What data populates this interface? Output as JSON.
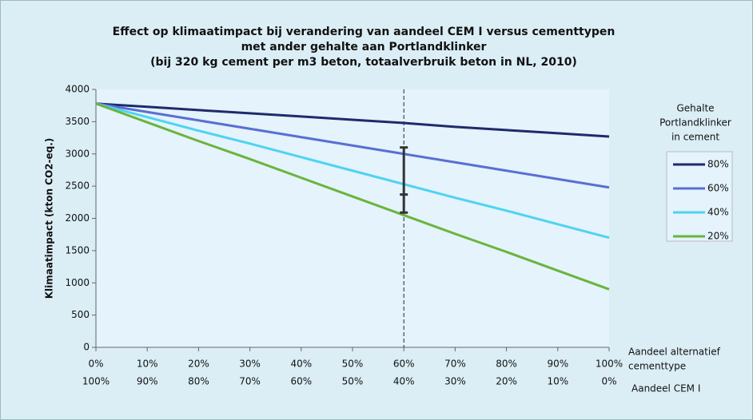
{
  "chart_data": {
    "type": "line",
    "title": [
      "Effect op klimaatimpact bij verandering van aandeel CEM I versus cementtypen",
      "met ander gehalte aan Portlandklinker",
      "(bij 320 kg cement per m3 beton, totaalverbruik beton in NL, 2010)"
    ],
    "y_label": "Klimaatimpact (kton CO2-eq.)",
    "x_label": [
      "Aandeel alternatief",
      "cementtype"
    ],
    "x2_label": "Aandeel CEM I",
    "categories": [
      "0%",
      "10%",
      "20%",
      "30%",
      "40%",
      "50%",
      "60%",
      "70%",
      "80%",
      "90%",
      "100%"
    ],
    "categories2": [
      "100%",
      "90%",
      "80%",
      "70%",
      "60%",
      "50%",
      "40%",
      "30%",
      "20%",
      "10%",
      "0%"
    ],
    "legend_title": [
      "Gehalte",
      "Portlandklinker",
      "in cement"
    ],
    "series": [
      {
        "name": "80%",
        "color": "#1f2a6b",
        "values": [
          3780,
          3730,
          3680,
          3630,
          3580,
          3530,
          3480,
          3420,
          3370,
          3320,
          3270
        ]
      },
      {
        "name": "60%",
        "color": "#5a6fd0",
        "values": [
          3780,
          3650,
          3520,
          3390,
          3260,
          3130,
          3000,
          2870,
          2740,
          2610,
          2480
        ]
      },
      {
        "name": "40%",
        "color": "#4fd3f0",
        "values": [
          3780,
          3570,
          3360,
          3160,
          2950,
          2740,
          2530,
          2320,
          2120,
          1910,
          1700
        ]
      },
      {
        "name": "20%",
        "color": "#6ab43c",
        "values": [
          3780,
          3490,
          3200,
          2920,
          2630,
          2340,
          2050,
          1760,
          1480,
          1190,
          900
        ]
      }
    ],
    "range_marker": {
      "category": "60%",
      "low": 2090,
      "mid": 2370,
      "high": 3100,
      "color": "#333333"
    },
    "ylim": [
      0,
      4000
    ],
    "yticks": [
      0,
      500,
      1000,
      1500,
      2000,
      2500,
      3000,
      3500,
      4000
    ],
    "grid": false,
    "legend": "right"
  }
}
